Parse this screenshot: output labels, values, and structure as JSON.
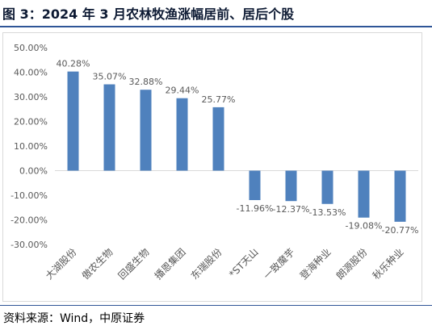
{
  "header": {
    "title": "图 3：2024 年 3 月农林牧渔涨幅居前、居后个股"
  },
  "footer": {
    "source": "资料来源：Wind，中原证券"
  },
  "colors": {
    "bar": "#4f81bd",
    "rule": "#2f5597",
    "axis_text": "#595959"
  },
  "chart_data": {
    "type": "bar",
    "categories": [
      "大湖股份",
      "傲农生物",
      "回盛生物",
      "播恩集团",
      "东瑞股份",
      "*ST天山",
      "一致魔芋",
      "登海种业",
      "朗源股份",
      "秋乐种业"
    ],
    "values": [
      40.28,
      35.07,
      32.88,
      29.44,
      25.77,
      -11.96,
      -12.37,
      -13.53,
      -19.08,
      -20.77
    ],
    "data_labels": [
      "40.28%",
      "35.07%",
      "32.88%",
      "29.44%",
      "25.77%",
      "-11.96%",
      "-12.37%",
      "-13.53%",
      "-19.08%",
      "-20.77%"
    ],
    "ylim": [
      -30,
      50
    ],
    "y_ticks": [
      50,
      40,
      30,
      20,
      10,
      0,
      -10,
      -20,
      -30
    ],
    "y_tick_labels": [
      "50.00%",
      "40.00%",
      "30.00%",
      "20.00%",
      "10.00%",
      "0.00%",
      "-10.00%",
      "-20.00%",
      "-30.00%"
    ],
    "grid": false,
    "legend": "none"
  }
}
